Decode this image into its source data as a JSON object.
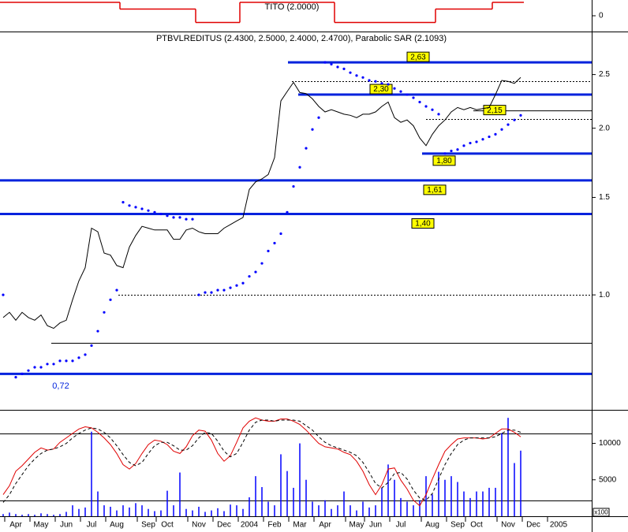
{
  "chart_data": [
    {
      "type": "line",
      "title": "TITO (2.0000)",
      "ylim": [
        -2.35,
        2.35
      ],
      "yticks": [
        0
      ],
      "series": [
        {
          "type": "step",
          "color": "#e00000",
          "values": [
            2,
            2,
            2,
            2,
            2,
            2,
            2,
            2,
            2,
            2,
            2,
            2,
            2,
            2,
            2,
            2,
            2,
            2,
            2,
            1,
            1,
            1,
            1,
            1,
            1,
            1,
            1,
            1,
            1,
            1,
            1,
            -1,
            -1,
            -1,
            -1,
            -1,
            -1,
            -1,
            2,
            2,
            2,
            2,
            2,
            2,
            2,
            2,
            2,
            2,
            2,
            2,
            2,
            2,
            2,
            -1,
            -1,
            -1,
            -1,
            -1,
            -1,
            -1,
            -1,
            -1,
            -1,
            -1,
            -1,
            -1,
            -1,
            -1,
            -1,
            1,
            1,
            1,
            1,
            1,
            1,
            1,
            1,
            1,
            2,
            2,
            2,
            2,
            2,
            null,
            null,
            null,
            null,
            null,
            null
          ]
        }
      ]
    },
    {
      "type": "line",
      "title": "PTBVLREDITUS (2.4300, 2.5000, 2.4000, 2.4700), Parabolic SAR (2.1093)",
      "log_scale": true,
      "ylim": [
        0.62,
        2.99
      ],
      "yticks": [
        {
          "value": 1.0,
          "label": "1.0"
        },
        1.5,
        {
          "value": 2.0,
          "label": "2.0"
        },
        2.5
      ],
      "series": [
        {
          "type": "line",
          "color": "#000000",
          "values": [
            0.91,
            0.93,
            0.9,
            0.93,
            0.91,
            0.9,
            0.92,
            0.88,
            0.87,
            0.89,
            0.9,
            0.98,
            1.06,
            1.12,
            1.32,
            1.3,
            1.19,
            1.18,
            1.13,
            1.12,
            1.22,
            1.28,
            1.33,
            1.32,
            1.31,
            1.31,
            1.31,
            1.26,
            1.26,
            1.31,
            1.32,
            1.3,
            1.29,
            1.29,
            1.29,
            1.32,
            1.34,
            1.36,
            1.38,
            1.55,
            1.6,
            1.62,
            1.65,
            1.77,
            2.24,
            2.33,
            2.42,
            2.32,
            2.31,
            2.26,
            2.19,
            2.14,
            2.16,
            2.14,
            2.12,
            2.11,
            2.09,
            2.12,
            2.12,
            2.14,
            2.19,
            2.23,
            2.09,
            2.05,
            2.07,
            2.02,
            1.92,
            1.86,
            1.95,
            2.02,
            2.07,
            2.14,
            2.18,
            2.16,
            2.18,
            2.16,
            2.17,
            2.18,
            2.3,
            2.44,
            2.43,
            2.41,
            2.47,
            null,
            null,
            null,
            null,
            null,
            null
          ]
        },
        {
          "type": "dots",
          "color": "#0000ff",
          "values": [
            1.0,
            null,
            0.71,
            0.72,
            0.73,
            0.74,
            0.74,
            0.75,
            0.75,
            0.76,
            0.76,
            0.76,
            0.77,
            0.78,
            0.81,
            0.86,
            0.93,
            0.98,
            1.02,
            1.47,
            1.45,
            1.44,
            1.43,
            1.42,
            1.41,
            1.4,
            1.39,
            1.38,
            1.38,
            1.37,
            1.37,
            1.0,
            1.01,
            1.01,
            1.02,
            1.02,
            1.03,
            1.04,
            1.05,
            1.08,
            1.1,
            1.14,
            1.2,
            1.24,
            1.29,
            1.41,
            1.57,
            1.7,
            1.84,
            1.99,
            2.09,
            2.63,
            2.61,
            2.58,
            2.56,
            2.52,
            2.49,
            2.47,
            2.44,
            2.43,
            2.41,
            2.4,
            2.36,
            2.33,
            2.3,
            2.27,
            2.23,
            2.19,
            2.16,
            2.12,
            1.8,
            1.82,
            1.83,
            1.86,
            1.88,
            1.89,
            1.91,
            1.93,
            1.95,
            1.99,
            2.03,
            2.07,
            2.11,
            null,
            null,
            null,
            null,
            null,
            null
          ]
        }
      ],
      "levels": [
        {
          "value": 2.63,
          "label": "2,63"
        },
        {
          "value": 2.3,
          "label": "2,30"
        },
        {
          "value": 2.15,
          "label": "2,15"
        },
        {
          "value": 1.8,
          "label": "1,80"
        },
        {
          "value": 1.61,
          "label": "1,61"
        },
        {
          "value": 1.4,
          "label": "1,40"
        },
        {
          "value": 0.72,
          "label": "0,72"
        }
      ],
      "reference_lines": [
        2.43,
        2.08,
        1.0,
        0.82
      ]
    },
    {
      "type": "bar",
      "categories": [
        null,
        null,
        "Apr",
        null,
        null,
        null,
        "May",
        null,
        null,
        null,
        "Jun",
        null,
        null,
        null,
        "Jul",
        null,
        null,
        null,
        "Aug",
        null,
        null,
        null,
        null,
        "Sep",
        null,
        null,
        "Oct",
        null,
        null,
        null,
        null,
        "Nov",
        null,
        null,
        null,
        "Dec",
        null,
        null,
        null,
        "2004",
        null,
        null,
        null,
        "Feb",
        null,
        null,
        null,
        "Mar",
        null,
        null,
        null,
        "Apr",
        null,
        null,
        null,
        null,
        "May",
        null,
        null,
        "Jun",
        null,
        null,
        null,
        "Jul",
        null,
        null,
        null,
        null,
        "Aug",
        null,
        null,
        null,
        "Sep",
        null,
        null,
        "Oct",
        null,
        null,
        null,
        null,
        "Nov",
        null,
        null,
        null,
        "Dec",
        null,
        null,
        null,
        "2005"
      ],
      "ylim": [
        0,
        14600
      ],
      "yticks": [
        5000,
        10000
      ],
      "y_unit_label": "x100",
      "y2lim": [
        5.6,
        101.2
      ],
      "y2_reference_lines": [
        20,
        80
      ],
      "series": [
        {
          "type": "bar",
          "color": "#0000ff",
          "values": [
            300,
            500,
            300,
            200,
            300,
            200,
            400,
            300,
            200,
            300,
            600,
            1500,
            1000,
            1200,
            11600,
            3400,
            1500,
            1300,
            800,
            1500,
            1200,
            1800,
            1500,
            1000,
            700,
            800,
            3500,
            1500,
            6000,
            1000,
            800,
            1300,
            600,
            800,
            1100,
            700,
            1600,
            1500,
            1000,
            2600,
            5500,
            4000,
            2000,
            1500,
            8500,
            6200,
            3900,
            10000,
            5000,
            2000,
            1500,
            2200,
            1000,
            1500,
            3400,
            1500,
            800,
            2000,
            1200,
            1500,
            3900,
            7100,
            5000,
            2500,
            2000,
            1500,
            2200,
            5500,
            3000,
            6100,
            5000,
            5500,
            4700,
            3400,
            2500,
            3400,
            3400,
            3900,
            3900,
            11400,
            13500,
            7300,
            9000,
            null,
            null,
            null,
            null,
            null,
            null
          ]
        },
        {
          "type": "line",
          "axis": "y2",
          "color": "#e00000",
          "values": [
            25,
            33,
            46,
            51,
            57,
            63,
            67,
            65,
            66,
            72,
            76,
            80,
            84,
            86,
            85,
            81,
            76,
            70,
            62,
            52,
            48,
            53,
            62,
            70,
            74,
            73,
            70,
            64,
            62,
            68,
            78,
            83,
            82,
            74,
            62,
            55,
            60,
            72,
            85,
            91,
            94,
            92,
            91,
            91,
            93,
            93,
            91,
            88,
            83,
            77,
            71,
            68,
            67,
            66,
            63,
            61,
            55,
            46,
            34,
            25,
            34,
            48,
            49,
            38,
            30,
            20,
            15,
            25,
            39,
            52,
            64,
            70,
            75,
            76,
            76,
            76,
            75,
            76,
            80,
            84,
            84,
            81,
            77,
            null,
            null,
            null,
            null,
            null,
            null
          ]
        },
        {
          "type": "line",
          "axis": "y2",
          "color": "#000000",
          "dashed": true,
          "values": [
            18,
            25,
            35,
            43,
            51,
            57,
            62,
            65,
            66,
            68,
            71,
            76,
            80,
            83,
            85,
            84,
            81,
            76,
            69,
            61,
            54,
            51,
            54,
            62,
            69,
            72,
            72,
            69,
            65,
            65,
            69,
            76,
            81,
            80,
            73,
            64,
            59,
            62,
            72,
            83,
            90,
            92,
            92,
            91,
            92,
            92,
            92,
            91,
            87,
            83,
            77,
            72,
            69,
            67,
            65,
            63,
            60,
            54,
            45,
            35,
            31,
            36,
            44,
            45,
            39,
            29,
            22,
            20,
            26,
            39,
            52,
            62,
            70,
            74,
            76,
            76,
            76,
            76,
            77,
            80,
            83,
            83,
            81,
            null,
            null,
            null,
            null,
            null,
            null
          ]
        }
      ]
    }
  ]
}
